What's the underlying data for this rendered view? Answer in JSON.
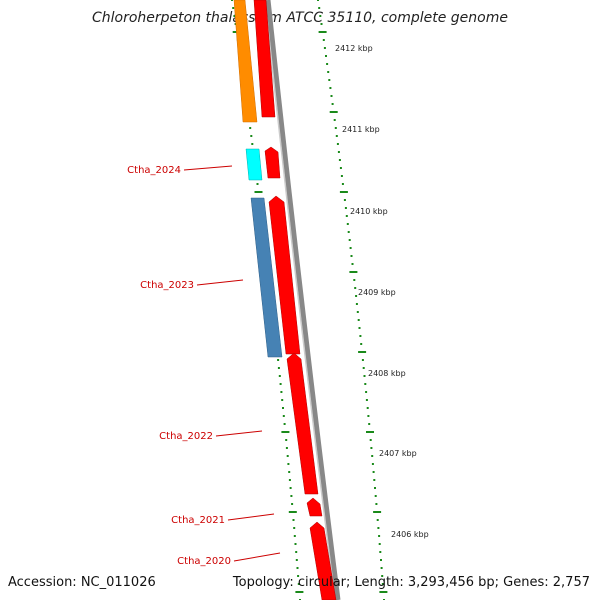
{
  "title": "Chloroherpeton thalassium ATCC 35110, complete genome",
  "footer": {
    "accession": "Accession: NC_011026",
    "topology": "Topology: circular; Length: 3,293,456 bp; Genes: 2,757"
  },
  "scale_labels": [
    {
      "kbp": 2412,
      "label": "2412 kbp"
    },
    {
      "kbp": 2411,
      "label": "2411 kbp"
    },
    {
      "kbp": 2410,
      "label": "2410 kbp"
    },
    {
      "kbp": 2409,
      "label": "2409 kbp"
    },
    {
      "kbp": 2408,
      "label": "2408 kbp"
    },
    {
      "kbp": 2407,
      "label": "2407 kbp"
    },
    {
      "kbp": 2406,
      "label": "2406 kbp"
    }
  ],
  "gene_labels": [
    "Ctha_2024",
    "Ctha_2023",
    "Ctha_2022",
    "Ctha_2021",
    "Ctha_2020"
  ],
  "colors": {
    "forward_gene": "#ff0000",
    "orange_gene": "#ff8c00",
    "cyan_gene": "#00ffff",
    "steelblue_gene": "#4682b4",
    "label_red": "#cc0000",
    "tick_green": "#1a8a1a",
    "backbone": "#888888"
  }
}
